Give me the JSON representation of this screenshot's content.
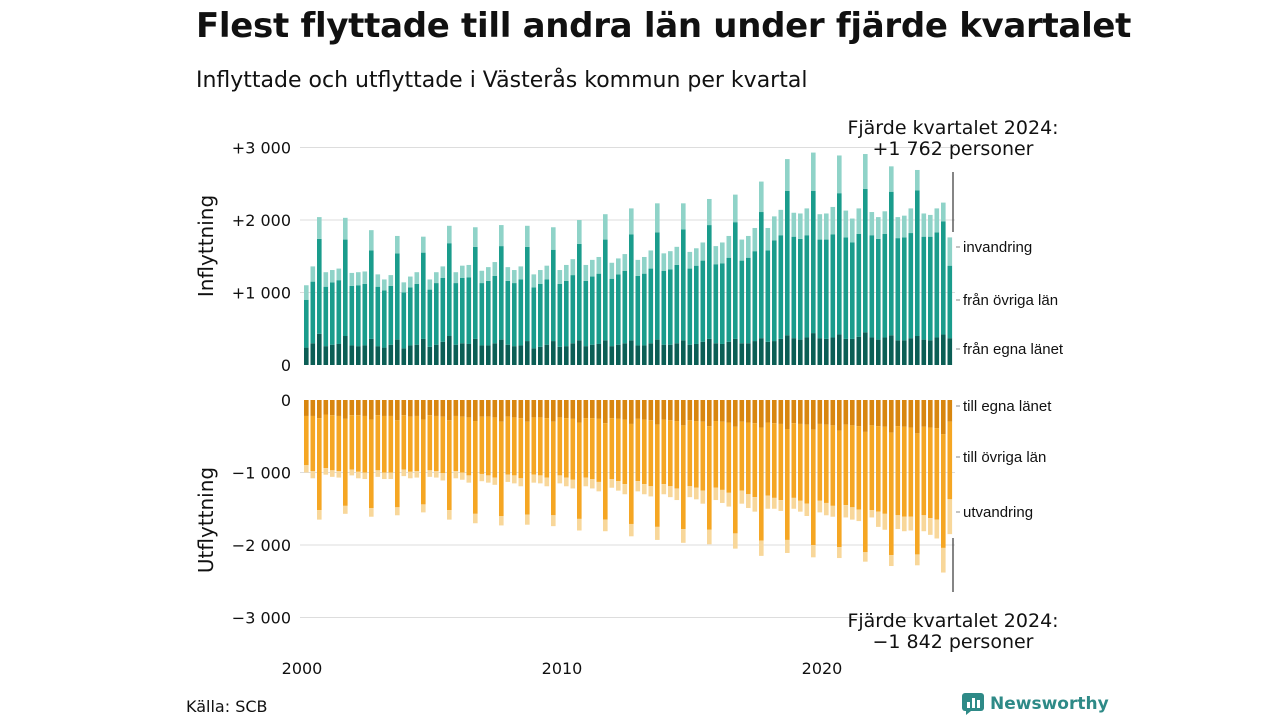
{
  "title": "Flest flyttade till andra län under fjärde kvartalet",
  "subtitle": "Inflyttade och utflyttade i Västerås kommun per kvartal",
  "source": "Källa: SCB",
  "brand": "Newsworthy",
  "colors": {
    "in_own": "#0b5e55",
    "in_other": "#1a9c8c",
    "in_immigration": "#8fd3c8",
    "out_own": "#d8860f",
    "out_other": "#f5a623",
    "out_emigration": "#f8d79a",
    "brand": "#2e8a87",
    "grid": "#dddddd"
  },
  "chart_data": {
    "type": "bar",
    "stacked": true,
    "x_start_quarter": "2000 Q1",
    "x_end_quarter": "2024 Q4",
    "x_ticks": [
      "2000",
      "2010",
      "2020"
    ],
    "panels": [
      {
        "name": "inflow",
        "ylabel": "Inflyttning",
        "ylim": [
          0,
          3000
        ],
        "y_ticks": [
          "0",
          "+1 000",
          "+2 000",
          "+3 000"
        ],
        "series": [
          {
            "name": "från egna länet",
            "values": [
              240,
              300,
              430,
              260,
              280,
              290,
              400,
              270,
              260,
              270,
              360,
              260,
              240,
              280,
              350,
              230,
              270,
              280,
              360,
              250,
              280,
              320,
              400,
              280,
              300,
              290,
              360,
              270,
              270,
              300,
              350,
              280,
              260,
              270,
              330,
              230,
              250,
              280,
              330,
              250,
              260,
              300,
              340,
              260,
              280,
              290,
              340,
              260,
              280,
              300,
              340,
              270,
              270,
              300,
              350,
              280,
              280,
              300,
              340,
              280,
              290,
              320,
              360,
              300,
              290,
              320,
              360,
              300,
              300,
              330,
              370,
              320,
              330,
              360,
              410,
              370,
              350,
              380,
              440,
              370,
              360,
              380,
              420,
              360,
              360,
              390,
              450,
              380,
              350,
              380,
              410,
              340,
              340,
              370,
              400,
              350,
              340,
              380,
              420,
              370
            ]
          },
          {
            "name": "från övriga län",
            "values": [
              660,
              850,
              1310,
              820,
              860,
              880,
              1330,
              820,
              840,
              850,
              1220,
              820,
              790,
              810,
              1190,
              770,
              800,
              840,
              1190,
              790,
              850,
              880,
              1280,
              850,
              900,
              920,
              1270,
              860,
              890,
              930,
              1290,
              880,
              870,
              910,
              1300,
              840,
              870,
              900,
              1260,
              870,
              900,
              940,
              1330,
              900,
              940,
              970,
              1390,
              930,
              970,
              1000,
              1460,
              960,
              990,
              1030,
              1480,
              1020,
              1040,
              1080,
              1530,
              1050,
              1080,
              1120,
              1570,
              1090,
              1110,
              1160,
              1610,
              1140,
              1180,
              1240,
              1740,
              1260,
              1390,
              1430,
              1990,
              1400,
              1390,
              1410,
              1960,
              1360,
              1370,
              1420,
              1950,
              1400,
              1330,
              1420,
              1980,
              1410,
              1390,
              1430,
              1980,
              1410,
              1420,
              1450,
              2010,
              1420,
              1430,
              1450,
              1560,
              1000
            ]
          },
          {
            "name": "invandring",
            "values": [
              200,
              210,
              300,
              200,
              170,
              160,
              300,
              180,
              180,
              170,
              280,
              170,
              150,
              150,
              240,
              140,
              150,
              160,
              220,
              140,
              150,
              160,
              240,
              150,
              170,
              170,
              270,
              170,
              190,
              190,
              290,
              190,
              180,
              180,
              290,
              180,
              190,
              190,
              310,
              190,
              220,
              220,
              330,
              220,
              230,
              230,
              350,
              220,
              220,
              230,
              360,
              220,
              230,
              250,
              400,
              240,
              250,
              250,
              360,
              230,
              240,
              250,
              360,
              250,
              290,
              300,
              380,
              290,
              300,
              320,
              420,
              310,
              330,
              350,
              440,
              330,
              350,
              370,
              530,
              350,
              360,
              380,
              520,
              370,
              330,
              350,
              480,
              320,
              300,
              310,
              350,
              290,
              300,
              340,
              280,
              320,
              300,
              330,
              260,
              390
            ]
          }
        ],
        "annotation": {
          "line1": "Fjärde kvartalet 2024:",
          "line2": "+1 762 personer"
        }
      },
      {
        "name": "outflow",
        "ylabel": "Utflyttning",
        "ylim": [
          -3000,
          0
        ],
        "y_ticks": [
          "0",
          "−1 000",
          "−2 000",
          "−3 000"
        ],
        "series": [
          {
            "name": "till egna länet",
            "values": [
              -220,
              -220,
              -250,
              -200,
              -210,
              -220,
              -260,
              -210,
              -210,
              -220,
              -270,
              -210,
              -220,
              -220,
              -280,
              -210,
              -230,
              -220,
              -270,
              -210,
              -220,
              -230,
              -280,
              -220,
              -230,
              -240,
              -290,
              -230,
              -230,
              -240,
              -300,
              -230,
              -240,
              -250,
              -300,
              -240,
              -240,
              -250,
              -300,
              -240,
              -250,
              -260,
              -310,
              -250,
              -250,
              -260,
              -320,
              -250,
              -260,
              -270,
              -330,
              -260,
              -270,
              -280,
              -340,
              -270,
              -280,
              -290,
              -350,
              -280,
              -290,
              -300,
              -360,
              -290,
              -300,
              -310,
              -370,
              -300,
              -310,
              -320,
              -380,
              -310,
              -320,
              -330,
              -400,
              -320,
              -330,
              -340,
              -410,
              -330,
              -340,
              -350,
              -420,
              -340,
              -350,
              -360,
              -440,
              -350,
              -360,
              -370,
              -450,
              -360,
              -370,
              -380,
              -460,
              -370,
              -380,
              -390,
              -470,
              -300
            ]
          },
          {
            "name": "till övriga län",
            "values": [
              -680,
              -760,
              -1270,
              -740,
              -760,
              -760,
              -1200,
              -750,
              -780,
              -780,
              -1220,
              -760,
              -780,
              -780,
              -1200,
              -750,
              -760,
              -760,
              -1170,
              -760,
              -760,
              -780,
              -1240,
              -760,
              -770,
              -800,
              -1280,
              -790,
              -810,
              -830,
              -1300,
              -800,
              -800,
              -830,
              -1280,
              -790,
              -800,
              -820,
              -1290,
              -800,
              -820,
              -840,
              -1330,
              -820,
              -840,
              -870,
              -1330,
              -840,
              -860,
              -890,
              -1380,
              -860,
              -890,
              -910,
              -1410,
              -890,
              -910,
              -930,
              -1430,
              -910,
              -920,
              -950,
              -1430,
              -920,
              -940,
              -970,
              -1470,
              -950,
              -990,
              -1020,
              -1560,
              -1010,
              -1030,
              -1050,
              -1530,
              -1030,
              -1060,
              -1090,
              -1590,
              -1060,
              -1080,
              -1110,
              -1610,
              -1110,
              -1130,
              -1150,
              -1660,
              -1170,
              -1180,
              -1200,
              -1690,
              -1230,
              -1240,
              -1230,
              -1670,
              -1220,
              -1250,
              -1260,
              -1570,
              -1070
            ]
          },
          {
            "name": "utvandring",
            "values": [
              -100,
              -100,
              -130,
              -90,
              -90,
              -90,
              -110,
              -80,
              -90,
              -90,
              -120,
              -90,
              -90,
              -90,
              -110,
              -90,
              -90,
              -90,
              -110,
              -90,
              -90,
              -100,
              -130,
              -100,
              -100,
              -100,
              -130,
              -100,
              -100,
              -100,
              -130,
              -100,
              -110,
              -110,
              -140,
              -110,
              -110,
              -120,
              -150,
              -110,
              -120,
              -120,
              -160,
              -120,
              -130,
              -130,
              -160,
              -120,
              -130,
              -140,
              -170,
              -140,
              -140,
              -140,
              -180,
              -140,
              -150,
              -160,
              -190,
              -150,
              -160,
              -180,
              -200,
              -170,
              -180,
              -190,
              -210,
              -180,
              -190,
              -200,
              -210,
              -180,
              -150,
              -150,
              -180,
              -150,
              -150,
              -170,
              -170,
              -160,
              -170,
              -150,
              -150,
              -170,
              -170,
              -160,
              -130,
              -100,
              -210,
              -220,
              -150,
              -190,
              -200,
              -190,
              -150,
              -220,
              -230,
              -260,
              -340,
              -480
            ]
          }
        ],
        "annotation": {
          "line1": "Fjärde kvartalet 2024:",
          "line2": "−1 842 personer"
        }
      }
    ]
  }
}
